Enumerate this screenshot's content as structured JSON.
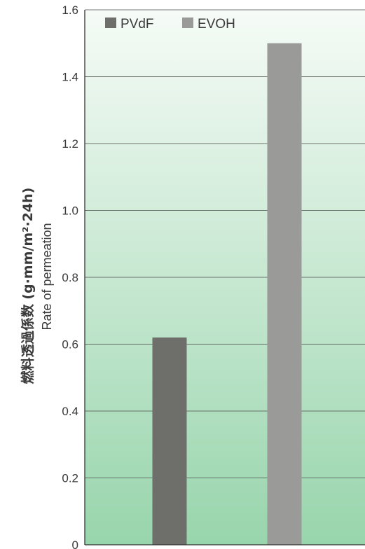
{
  "chart_data": {
    "type": "bar",
    "categories": [
      "PVdF",
      "EVOH"
    ],
    "series": [
      {
        "name": "PVdF",
        "values": [
          0.62,
          null
        ],
        "color": "#6e6e6a"
      },
      {
        "name": "EVOH",
        "values": [
          null,
          1.5
        ],
        "color": "#9a9a98"
      }
    ],
    "title": "",
    "xlabel": "",
    "ylabel": "燃料透過係数 (g·mm/m²·24h)",
    "ylabel_secondary": "Rate of permeation",
    "ylim": [
      0,
      1.6
    ],
    "yticks": [
      "0",
      "0.2",
      "0.4",
      "0.6",
      "0.8",
      "1.0",
      "1.2",
      "1.4",
      "1.6"
    ],
    "grid": true,
    "legend": "top-left",
    "background_gradient": [
      "#f6fbf7",
      "#98d5ac"
    ]
  }
}
